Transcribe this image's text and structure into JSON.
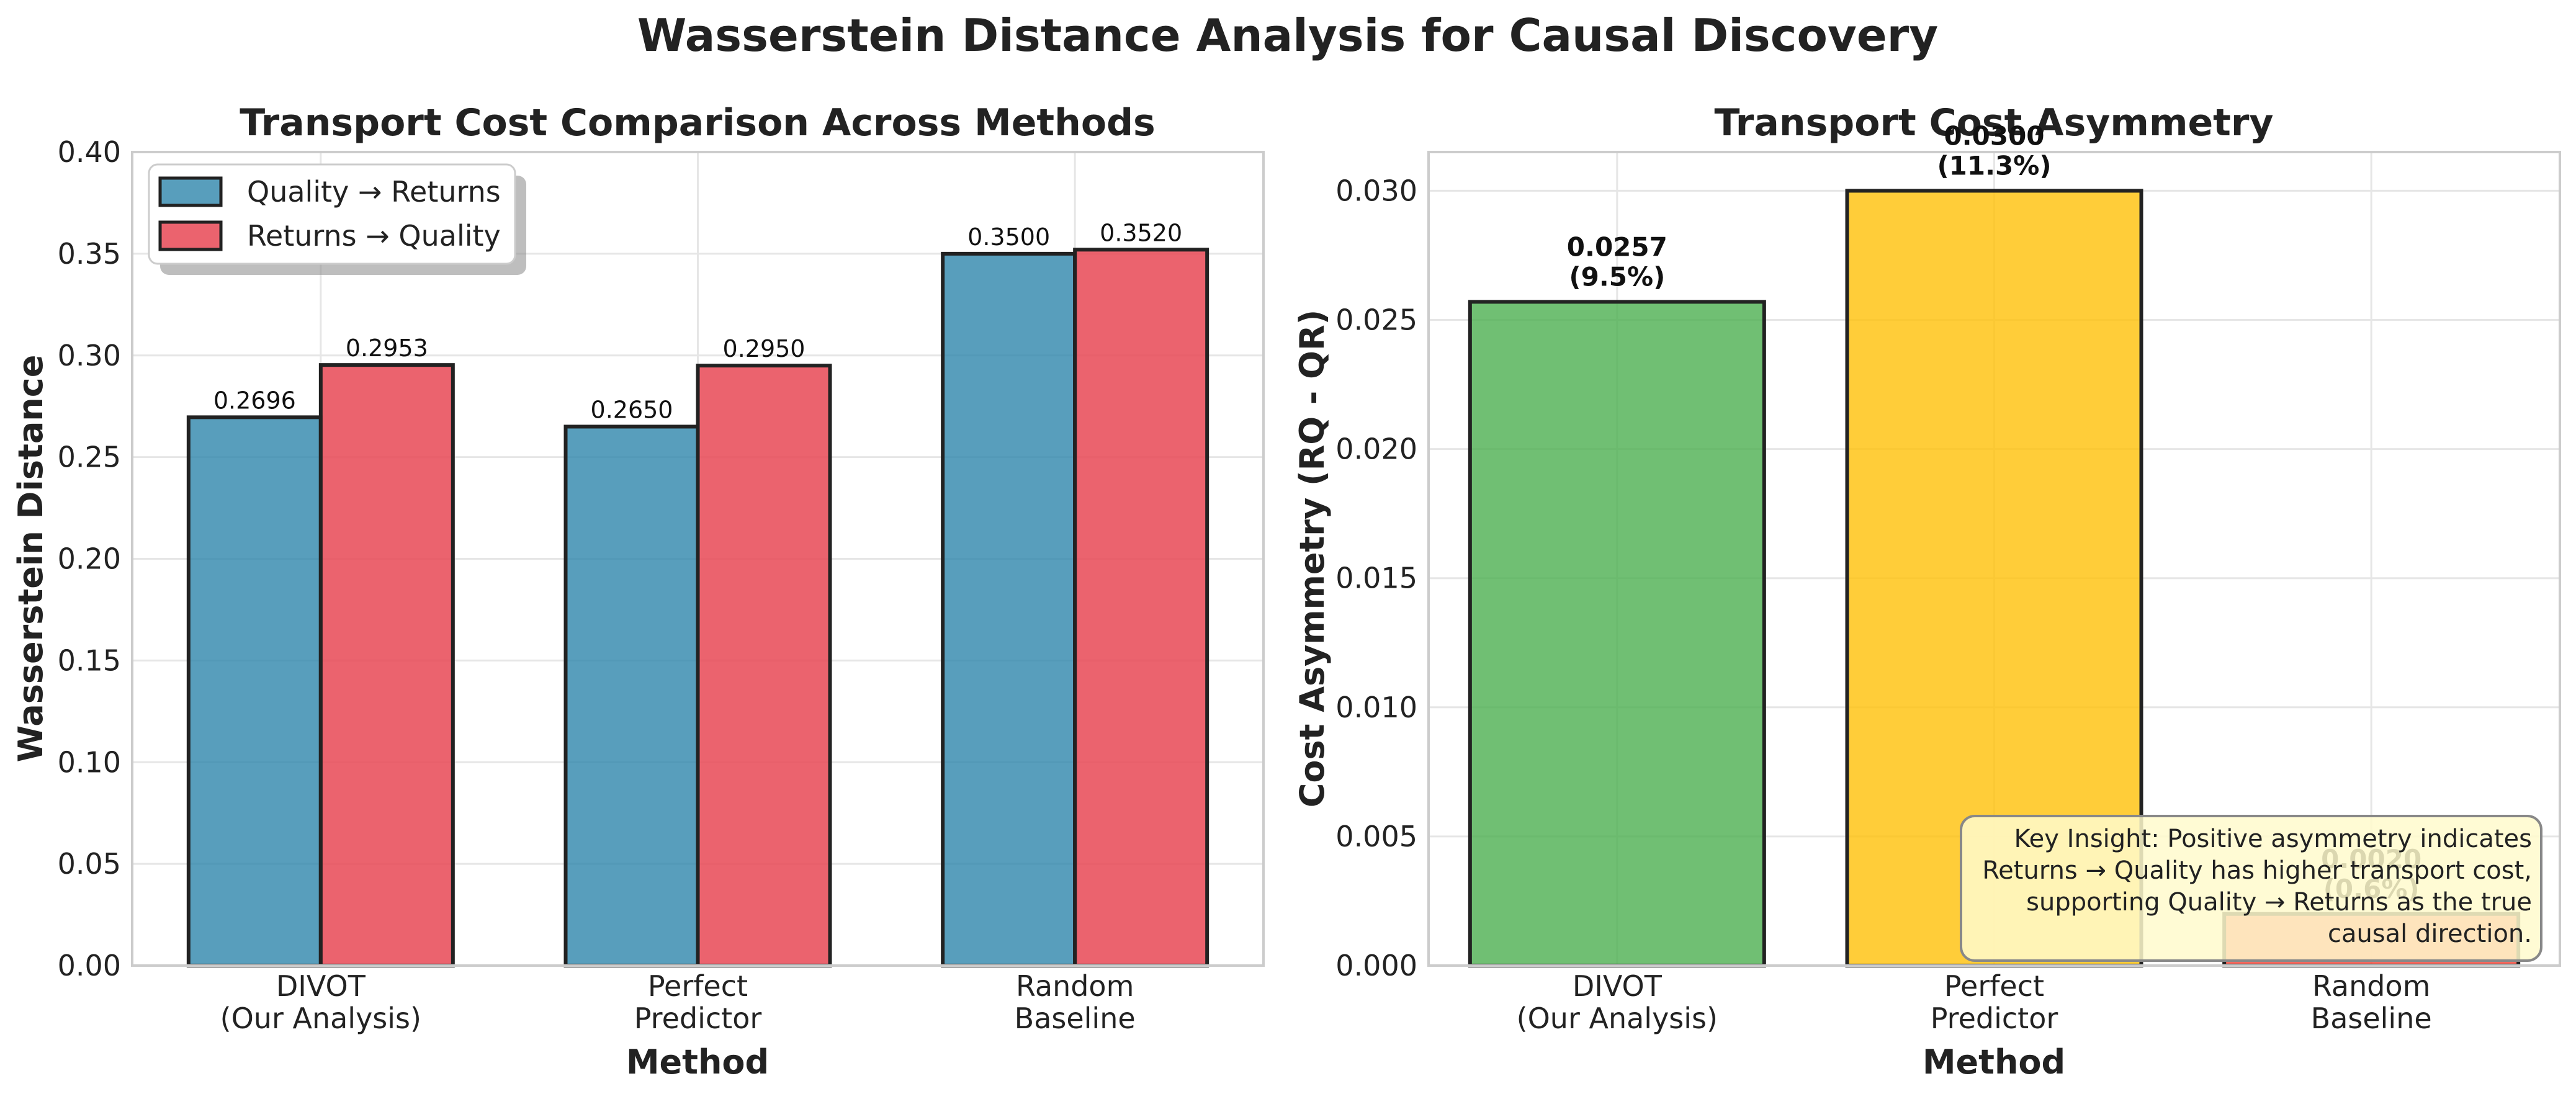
{
  "figure": {
    "title": "Wasserstein Distance Analysis for Causal Discovery"
  },
  "chart_data": [
    {
      "type": "bar",
      "title": "Transport Cost Comparison Across Methods",
      "xlabel": "Method",
      "ylabel": "Wasserstein Distance",
      "categories": [
        [
          "DIVOT",
          "(Our Analysis)"
        ],
        [
          "Perfect",
          "Predictor"
        ],
        [
          "Random",
          "Baseline"
        ]
      ],
      "ylim": [
        0,
        0.4
      ],
      "yticks": [
        "0.00",
        "0.05",
        "0.10",
        "0.15",
        "0.20",
        "0.25",
        "0.30",
        "0.35",
        "0.40"
      ],
      "grid": true,
      "legend_position": "upper-left",
      "series": [
        {
          "name": "Quality → Returns",
          "color": "#2E86AB",
          "values": [
            0.2696,
            0.265,
            0.35
          ],
          "labels": [
            "0.2696",
            "0.2650",
            "0.3500"
          ]
        },
        {
          "name": "Returns → Quality",
          "color": "#E84855",
          "values": [
            0.2953,
            0.295,
            0.352
          ],
          "labels": [
            "0.2953",
            "0.2950",
            "0.3520"
          ]
        }
      ]
    },
    {
      "type": "bar",
      "title": "Transport Cost Asymmetry",
      "xlabel": "Method",
      "ylabel": "Cost Asymmetry (RQ - QR)",
      "categories": [
        [
          "DIVOT",
          "(Our Analysis)"
        ],
        [
          "Perfect",
          "Predictor"
        ],
        [
          "Random",
          "Baseline"
        ]
      ],
      "ylim": [
        0,
        0.0315
      ],
      "yticks": [
        "0.000",
        "0.005",
        "0.010",
        "0.015",
        "0.020",
        "0.025",
        "0.030"
      ],
      "grid": true,
      "values": [
        0.0257,
        0.03,
        0.002
      ],
      "colors": [
        "#4CAF50",
        "#FFC107",
        "#F44336"
      ],
      "labels": [
        [
          "0.0257",
          "(9.5%)"
        ],
        [
          "0.0300",
          "(11.3%)"
        ],
        [
          "0.0020",
          "(0.6%)"
        ]
      ],
      "annotation": {
        "lines": [
          "Key Insight: Positive asymmetry indicates",
          "Returns → Quality has higher transport cost,",
          "supporting Quality → Returns as the true",
          "causal direction."
        ],
        "position": "lower-right"
      }
    }
  ]
}
